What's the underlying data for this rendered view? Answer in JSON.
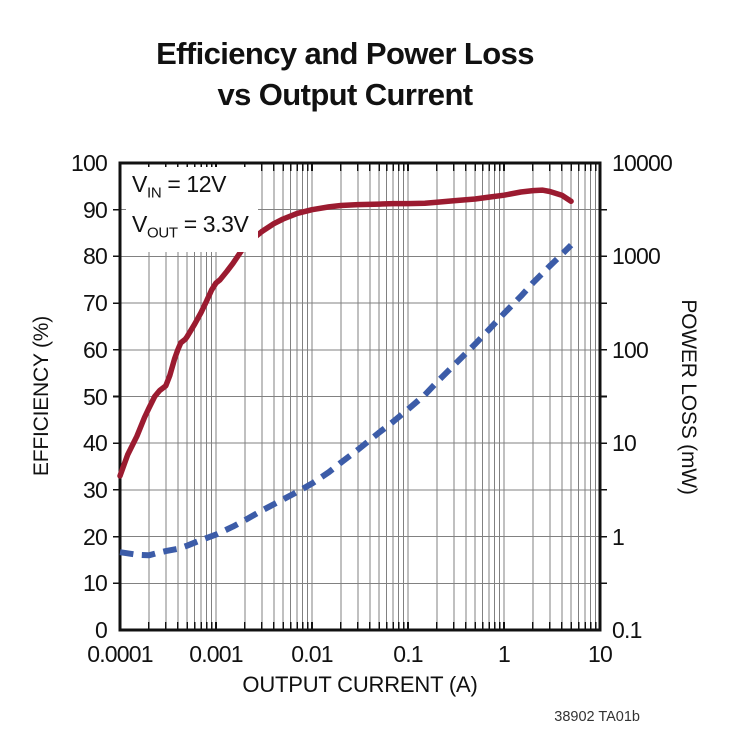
{
  "title": {
    "line1": "Efficiency and Power Loss",
    "line2": "vs Output Current"
  },
  "ref_label": "38902 TA01b",
  "annotation": {
    "lines": [
      {
        "pre": "V",
        "sub": "IN",
        "post": " = 12V"
      },
      {
        "pre": "V",
        "sub": "OUT",
        "post": " = 3.3V"
      }
    ]
  },
  "colors": {
    "efficiency_curve": "#9b1b30",
    "power_loss_curve": "#3c5ca8",
    "grid": "#818181",
    "frame": "#111111",
    "text": "#111111"
  },
  "chart_data": {
    "type": "line",
    "title": "Efficiency and Power Loss vs Output Current",
    "grid": "on",
    "annotations": [
      "VIN = 12V",
      "VOUT = 3.3V"
    ],
    "x_axis": {
      "label": "OUTPUT CURRENT (A)",
      "scale": "log",
      "min": 0.0001,
      "max": 10,
      "ticks": [
        "0.0001",
        "0.001",
        "0.01",
        "0.1",
        "1",
        "10"
      ]
    },
    "y_left": {
      "label": "EFFICIENCY (%)",
      "scale": "linear",
      "min": 0,
      "max": 100,
      "ticks": [
        100,
        90,
        80,
        70,
        60,
        50,
        40,
        30,
        20,
        10,
        0
      ]
    },
    "y_right": {
      "label": "POWER LOSS (mW)",
      "scale": "log",
      "min": 0.1,
      "max": 10000,
      "ticks": [
        "10000",
        "1000",
        "100",
        "10",
        "1",
        "0.1"
      ]
    },
    "series": [
      {
        "name": "Efficiency",
        "axis": "left",
        "style": "solid",
        "color": "#9b1b30",
        "points": [
          [
            0.0001,
            33
          ],
          [
            0.00012,
            37.5
          ],
          [
            0.00015,
            41.5
          ],
          [
            0.00018,
            45.5
          ],
          [
            0.0002,
            47.5
          ],
          [
            0.00023,
            50
          ],
          [
            0.00026,
            51.3
          ],
          [
            0.0003,
            52.3
          ],
          [
            0.00033,
            54.5
          ],
          [
            0.00037,
            58
          ],
          [
            0.0004,
            60
          ],
          [
            0.00043,
            61.5
          ],
          [
            0.00048,
            62.3
          ],
          [
            0.0005,
            62.8
          ],
          [
            0.0006,
            65.5
          ],
          [
            0.0007,
            68
          ],
          [
            0.0008,
            70.5
          ],
          [
            0.0009,
            72.8
          ],
          [
            0.001,
            74.3
          ],
          [
            0.0011,
            75
          ],
          [
            0.0013,
            76.8
          ],
          [
            0.0015,
            78.5
          ],
          [
            0.002,
            82.3
          ],
          [
            0.0025,
            84
          ],
          [
            0.003,
            85.3
          ],
          [
            0.004,
            87
          ],
          [
            0.005,
            88
          ],
          [
            0.007,
            89.2
          ],
          [
            0.01,
            90
          ],
          [
            0.015,
            90.6
          ],
          [
            0.02,
            90.9
          ],
          [
            0.03,
            91.1
          ],
          [
            0.05,
            91.2
          ],
          [
            0.07,
            91.3
          ],
          [
            0.1,
            91.3
          ],
          [
            0.15,
            91.4
          ],
          [
            0.2,
            91.6
          ],
          [
            0.3,
            91.9
          ],
          [
            0.5,
            92.3
          ],
          [
            0.7,
            92.7
          ],
          [
            1,
            93.1
          ],
          [
            1.5,
            93.8
          ],
          [
            2,
            94.1
          ],
          [
            2.5,
            94.2
          ],
          [
            3,
            93.9
          ],
          [
            4,
            93.1
          ],
          [
            5,
            91.8
          ]
        ]
      },
      {
        "name": "Power Loss",
        "axis": "right",
        "style": "dashed",
        "color": "#3c5ca8",
        "points": [
          [
            0.0001,
            0.68
          ],
          [
            0.00015,
            0.64
          ],
          [
            0.0002,
            0.63
          ],
          [
            0.00025,
            0.67
          ],
          [
            0.0003,
            0.7
          ],
          [
            0.0004,
            0.74
          ],
          [
            0.0005,
            0.8
          ],
          [
            0.0007,
            0.92
          ],
          [
            0.001,
            1.05
          ],
          [
            0.0015,
            1.28
          ],
          [
            0.002,
            1.5
          ],
          [
            0.003,
            1.9
          ],
          [
            0.005,
            2.5
          ],
          [
            0.007,
            3.0
          ],
          [
            0.01,
            3.7
          ],
          [
            0.015,
            4.9
          ],
          [
            0.02,
            6.2
          ],
          [
            0.03,
            8.5
          ],
          [
            0.05,
            13
          ],
          [
            0.07,
            17
          ],
          [
            0.1,
            23
          ],
          [
            0.15,
            33
          ],
          [
            0.2,
            45
          ],
          [
            0.3,
            68
          ],
          [
            0.5,
            115
          ],
          [
            0.7,
            165
          ],
          [
            1,
            245
          ],
          [
            1.5,
            375
          ],
          [
            2,
            520
          ],
          [
            3,
            790
          ],
          [
            4,
            1050
          ],
          [
            5,
            1320
          ]
        ]
      }
    ]
  }
}
